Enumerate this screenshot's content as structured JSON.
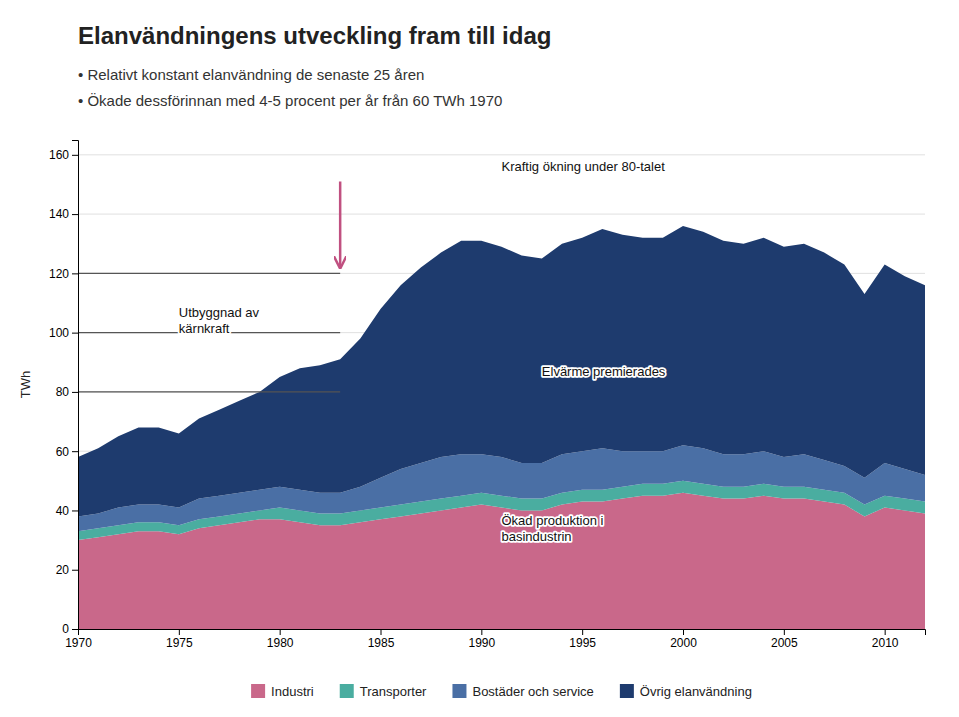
{
  "chart_data": {
    "type": "area",
    "stacked": true,
    "title": "Elanvändningens utveckling fram till idag",
    "subtitle": [
      "•  Relativt konstant elanvändning de senaste 25 åren",
      "•  Ökade dessförinnan med 4-5 procent per år från 60 TWh 1970"
    ],
    "ylabel": "TWh",
    "x": [
      1970,
      1971,
      1972,
      1973,
      1974,
      1975,
      1976,
      1977,
      1978,
      1979,
      1980,
      1981,
      1982,
      1983,
      1984,
      1985,
      1986,
      1987,
      1988,
      1989,
      1990,
      1991,
      1992,
      1993,
      1994,
      1995,
      1996,
      1997,
      1998,
      1999,
      2000,
      2001,
      2002,
      2003,
      2004,
      2005,
      2006,
      2007,
      2008,
      2009,
      2010,
      2011,
      2012
    ],
    "series": [
      {
        "name": "Industri",
        "color": "#c9688a",
        "values": [
          30,
          31,
          32,
          33,
          33,
          32,
          34,
          35,
          36,
          37,
          37,
          36,
          35,
          35,
          36,
          37,
          38,
          39,
          40,
          41,
          42,
          41,
          40,
          40,
          42,
          43,
          43,
          44,
          45,
          45,
          46,
          45,
          44,
          44,
          45,
          44,
          44,
          43,
          42,
          38,
          41,
          40,
          39
        ]
      },
      {
        "name": "Transporter",
        "color": "#4aada0",
        "values": [
          3,
          3,
          3,
          3,
          3,
          3,
          3,
          3,
          3,
          3,
          4,
          4,
          4,
          4,
          4,
          4,
          4,
          4,
          4,
          4,
          4,
          4,
          4,
          4,
          4,
          4,
          4,
          4,
          4,
          4,
          4,
          4,
          4,
          4,
          4,
          4,
          4,
          4,
          4,
          4,
          4,
          4,
          4
        ]
      },
      {
        "name": "Bostäder och service",
        "color": "#4a6fa5",
        "values": [
          5,
          5,
          6,
          6,
          6,
          6,
          7,
          7,
          7,
          7,
          7,
          7,
          7,
          7,
          8,
          10,
          12,
          13,
          14,
          14,
          13,
          13,
          12,
          12,
          13,
          13,
          14,
          12,
          11,
          11,
          12,
          12,
          11,
          11,
          11,
          10,
          11,
          10,
          9,
          9,
          11,
          10,
          9
        ]
      },
      {
        "name": "Övrig elanvändning",
        "color": "#1e3b6e",
        "values": [
          20,
          22,
          24,
          26,
          26,
          25,
          27,
          29,
          31,
          33,
          37,
          41,
          43,
          45,
          50,
          57,
          62,
          66,
          69,
          72,
          72,
          71,
          70,
          69,
          71,
          72,
          74,
          73,
          72,
          72,
          74,
          73,
          72,
          71,
          72,
          71,
          71,
          70,
          68,
          62,
          67,
          65,
          64
        ]
      }
    ],
    "xlim": [
      1970,
      2012
    ],
    "xticks": [
      1970,
      1975,
      1980,
      1985,
      1990,
      1995,
      2000,
      2005,
      2010
    ],
    "ylim": [
      0,
      165
    ],
    "yticks": [
      0,
      20,
      40,
      60,
      80,
      100,
      120,
      140,
      160
    ],
    "grid": true,
    "legend": "bottom",
    "annotations": [
      {
        "text": "Kraftig ökning under 80-talet",
        "x": 1991,
        "y": 156
      },
      {
        "text": "Utbyggnad av\nkärnkraft",
        "x": 1975,
        "y": 104
      },
      {
        "text": "Elvärme premierades",
        "x": 1993,
        "y": 87
      },
      {
        "text": "Ökad produktion i\nbasindustrin",
        "x": 1991,
        "y": 34
      }
    ],
    "arrows": [
      {
        "x": 1983,
        "y_start": 151,
        "y_end": 122,
        "color": "#c05080"
      }
    ],
    "hlines": {
      "y": [
        120,
        100,
        80
      ],
      "x_range": [
        1970,
        1983
      ]
    }
  }
}
